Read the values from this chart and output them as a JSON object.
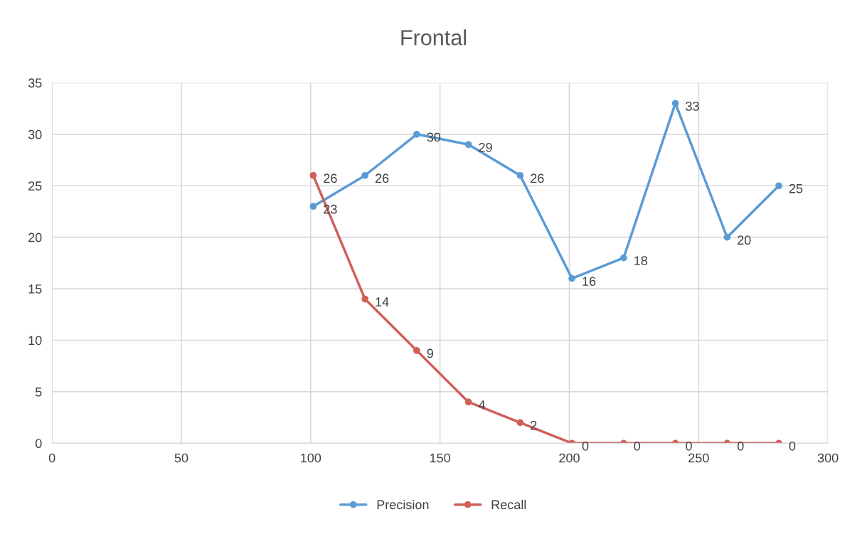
{
  "chart_data": {
    "type": "line",
    "title": "Frontal",
    "xlim": [
      0,
      300
    ],
    "xticks": [
      0,
      50,
      100,
      150,
      200,
      250,
      300
    ],
    "ylim": [
      0,
      35
    ],
    "yticks": [
      0,
      5,
      10,
      15,
      20,
      25,
      30,
      35
    ],
    "grid": true,
    "legend": "bottom",
    "marker": "circle",
    "line_style": "solid",
    "data_labels": true,
    "series": [
      {
        "name": "Precision",
        "color": "#5b9bd5",
        "x": [
          101,
          121,
          141,
          161,
          181,
          201,
          221,
          241,
          261,
          281
        ],
        "values": [
          23,
          26,
          30,
          29,
          26,
          16,
          18,
          33,
          20,
          25
        ]
      },
      {
        "name": "Recall",
        "color": "#d0605a",
        "x": [
          101,
          121,
          141,
          161,
          181,
          201,
          221,
          241,
          261,
          281
        ],
        "values": [
          26,
          14,
          9,
          4,
          2,
          0,
          0,
          0,
          0,
          0
        ]
      }
    ]
  }
}
